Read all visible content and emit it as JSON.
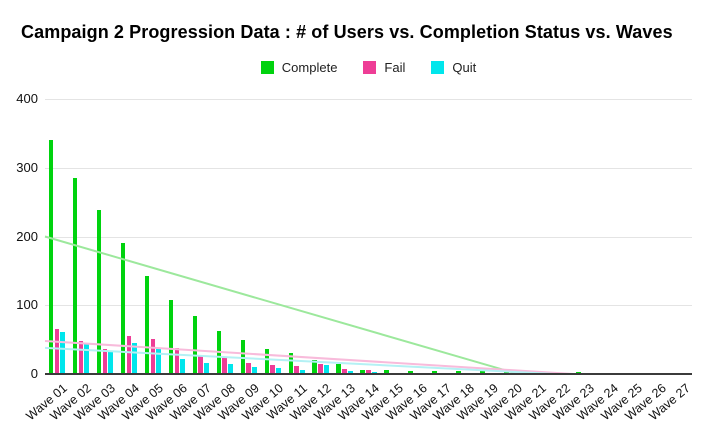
{
  "title": "Campaign 2 Progression Data : # of Users vs. Completion Status vs. Waves",
  "chart_data": {
    "type": "bar",
    "title": "Campaign 2 Progression Data : # of Users vs. Completion Status vs. Waves",
    "xlabel": "",
    "ylabel": "",
    "ylim": [
      0,
      400
    ],
    "yticks": [
      "400",
      "300",
      "200",
      "100",
      "0"
    ],
    "grid": true,
    "legend_position": "top-center",
    "x_tick_rotation_deg": -40,
    "background_color": "#ffffff",
    "gridline_color": "#e4e4e4",
    "axis_line_color": "#3b3b3b",
    "categories": [
      "Wave 01",
      "Wave 02",
      "Wave 03",
      "Wave 04",
      "Wave 05",
      "Wave 06",
      "Wave 07",
      "Wave 08",
      "Wave 09",
      "Wave 10",
      "Wave 11",
      "Wave 12",
      "Wave 13",
      "Wave 14",
      "Wave 15",
      "Wave 16",
      "Wave 17",
      "Wave 18",
      "Wave 19",
      "Wave 20",
      "Wave 21",
      "Wave 22",
      "Wave 23",
      "Wave 24",
      "Wave 25",
      "Wave 26",
      "Wave 27"
    ],
    "series": [
      {
        "name": "Complete",
        "color": "#00d30e",
        "values": [
          340,
          285,
          238,
          190,
          142,
          108,
          85,
          62,
          50,
          37,
          30,
          21,
          14,
          6,
          6,
          5,
          5,
          4,
          4,
          3,
          3,
          3,
          3,
          2,
          2,
          0,
          0
        ]
      },
      {
        "name": "Fail",
        "color": "#ee3d96",
        "values": [
          65,
          48,
          36,
          56,
          51,
          38,
          28,
          23,
          16,
          13,
          12,
          15,
          8,
          6,
          2,
          1,
          1,
          1,
          1,
          1,
          2,
          2,
          1,
          0,
          0,
          0,
          0
        ]
      },
      {
        "name": "Quit",
        "color": "#00e6ec",
        "values": [
          61,
          43,
          32,
          45,
          38,
          22,
          16,
          15,
          10,
          9,
          6,
          13,
          5,
          3,
          1,
          1,
          0,
          0,
          0,
          0,
          0,
          0,
          0,
          0,
          0,
          0,
          0
        ]
      }
    ],
    "trendlines": [
      {
        "series": "Complete",
        "color": "#9ce89c",
        "start_value": 200,
        "end_value": 0,
        "zero_at_fraction": 0.731
      },
      {
        "series": "Fail",
        "color": "#f8bbdb",
        "start_value": 48,
        "end_value": 0,
        "zero_at_fraction": 0.816
      },
      {
        "series": "Quit",
        "color": "#b4f1f4",
        "start_value": 38,
        "end_value": 0,
        "zero_at_fraction": 0.788
      }
    ]
  }
}
